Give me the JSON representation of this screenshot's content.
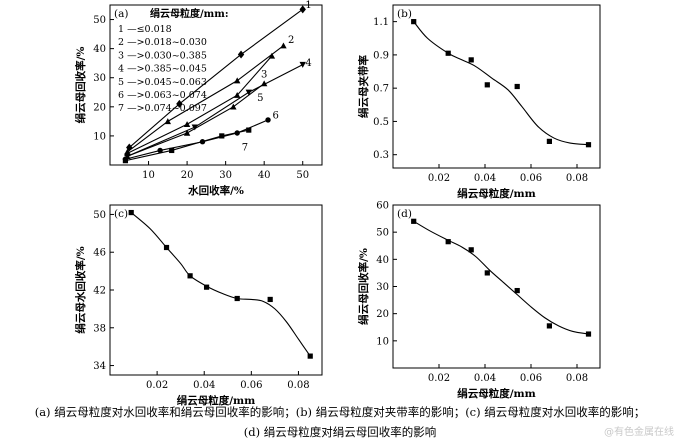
{
  "caption": {
    "line1": "(a) 绢云母粒度对水回收率和绢云母回收率的影响；(b) 绢云母粒度对夹带率的影响；(c) 绢云母粒度对水回收率的影响；",
    "line2": "(d) 绢云母粒度对绢云母回收率的影响"
  },
  "watermark": "@有色金属在线",
  "chart_data": [
    {
      "id": "a",
      "type": "line",
      "panel_label": "(a)",
      "xlabel": "水回收率/%",
      "ylabel": "绢云母回收率/%",
      "xlim": [
        0,
        55
      ],
      "ylim": [
        0,
        55
      ],
      "xticks": [
        10,
        20,
        30,
        40,
        50
      ],
      "yticks": [
        10,
        20,
        30,
        40,
        50
      ],
      "legend_title": "绢云母粒度/mm:",
      "legend": [
        "1 —≤0.018",
        "2 —>0.018~0.030",
        "3 —>0.030~0.385",
        "4 —>0.385~0.045",
        "5 —>0.045~0.063",
        "6 —>0.063~0.074",
        "7 —>0.074~0.097"
      ],
      "series": [
        {
          "name": "1",
          "marker": "diamond",
          "x": [
            5,
            18,
            34,
            50
          ],
          "y": [
            6,
            21,
            38,
            53.5
          ]
        },
        {
          "name": "2",
          "marker": "triangle",
          "x": [
            4.5,
            15,
            33,
            45
          ],
          "y": [
            4.5,
            15,
            29,
            41
          ]
        },
        {
          "name": "3",
          "marker": "triangle",
          "x": [
            4.5,
            20,
            33,
            42
          ],
          "y": [
            4,
            14,
            24,
            37.5
          ]
        },
        {
          "name": "4",
          "marker": "triangle-down",
          "x": [
            4.5,
            22,
            36,
            50
          ],
          "y": [
            3,
            13,
            25,
            34.5
          ]
        },
        {
          "name": "5",
          "marker": "triangle",
          "x": [
            4.5,
            20,
            32,
            40
          ],
          "y": [
            3,
            11,
            20,
            28
          ]
        },
        {
          "name": "6",
          "marker": "circle",
          "x": [
            4,
            13,
            24,
            33,
            41
          ],
          "y": [
            2,
            5,
            8,
            11,
            15.5
          ]
        },
        {
          "name": "7",
          "marker": "square",
          "x": [
            4,
            16,
            29,
            36
          ],
          "y": [
            1.5,
            5,
            10,
            12
          ]
        }
      ],
      "line_labels": [
        {
          "text": "1",
          "x": 51.5,
          "y": 54
        },
        {
          "text": "2",
          "x": 47,
          "y": 42
        },
        {
          "text": "3",
          "x": 40,
          "y": 30
        },
        {
          "text": "4",
          "x": 51.5,
          "y": 34
        },
        {
          "text": "5",
          "x": 39,
          "y": 22
        },
        {
          "text": "6",
          "x": 43,
          "y": 16
        },
        {
          "text": "7",
          "x": 35,
          "y": 5
        }
      ]
    },
    {
      "id": "b",
      "type": "scatter",
      "panel_label": "(b)",
      "xlabel": "绢云母粒度/mm",
      "ylabel": "绢云母夹带率",
      "xlim": [
        0,
        0.09
      ],
      "ylim": [
        0.22,
        1.2
      ],
      "xticks": [
        0.02,
        0.04,
        0.06,
        0.08
      ],
      "yticks": [
        0.3,
        0.5,
        0.7,
        0.9,
        1.1
      ],
      "points": {
        "x": [
          0.009,
          0.024,
          0.034,
          0.041,
          0.054,
          0.068,
          0.085
        ],
        "y": [
          1.1,
          0.91,
          0.87,
          0.72,
          0.71,
          0.38,
          0.36
        ]
      },
      "fit": {
        "x": [
          0.009,
          0.015,
          0.024,
          0.03,
          0.036,
          0.043,
          0.05,
          0.056,
          0.063,
          0.07,
          0.077,
          0.085
        ],
        "y": [
          1.1,
          1.0,
          0.91,
          0.87,
          0.83,
          0.76,
          0.69,
          0.59,
          0.47,
          0.4,
          0.37,
          0.36
        ]
      }
    },
    {
      "id": "c",
      "type": "scatter",
      "panel_label": "(c)",
      "xlabel": "绢云母粒度/mm",
      "ylabel": "绢云母水回收率/%",
      "xlim": [
        0,
        0.09
      ],
      "ylim": [
        33,
        51
      ],
      "xticks": [
        0.02,
        0.04,
        0.06,
        0.08
      ],
      "yticks": [
        34,
        38,
        42,
        46,
        50
      ],
      "points": {
        "x": [
          0.009,
          0.024,
          0.034,
          0.041,
          0.054,
          0.068,
          0.085
        ],
        "y": [
          50.2,
          46.5,
          43.5,
          42.3,
          41.1,
          41.0,
          35.0
        ]
      },
      "fit": {
        "x": [
          0.009,
          0.017,
          0.024,
          0.03,
          0.034,
          0.041,
          0.048,
          0.054,
          0.06,
          0.065,
          0.07,
          0.075,
          0.08,
          0.085
        ],
        "y": [
          50.2,
          48.5,
          46.5,
          44.8,
          43.5,
          42.4,
          41.6,
          41.1,
          41.0,
          40.8,
          40.0,
          38.6,
          36.8,
          35.0
        ]
      }
    },
    {
      "id": "d",
      "type": "scatter",
      "panel_label": "(d)",
      "xlabel": "绢云母粒度/mm",
      "ylabel": "绢云母回收率/%",
      "xlim": [
        0,
        0.09
      ],
      "ylim": [
        0,
        60
      ],
      "xticks": [
        0.02,
        0.04,
        0.06,
        0.08
      ],
      "yticks": [
        10,
        20,
        30,
        40,
        50,
        60
      ],
      "points": {
        "x": [
          0.009,
          0.024,
          0.034,
          0.041,
          0.054,
          0.068,
          0.085
        ],
        "y": [
          54,
          46.5,
          43.5,
          35,
          28.5,
          15.5,
          12.5
        ]
      },
      "fit": {
        "x": [
          0.009,
          0.016,
          0.024,
          0.03,
          0.036,
          0.042,
          0.048,
          0.054,
          0.06,
          0.066,
          0.072,
          0.078,
          0.085
        ],
        "y": [
          54,
          50.5,
          47,
          44.5,
          41,
          36,
          31.5,
          27,
          22.5,
          18.5,
          15.5,
          13.5,
          12.5
        ]
      }
    }
  ]
}
